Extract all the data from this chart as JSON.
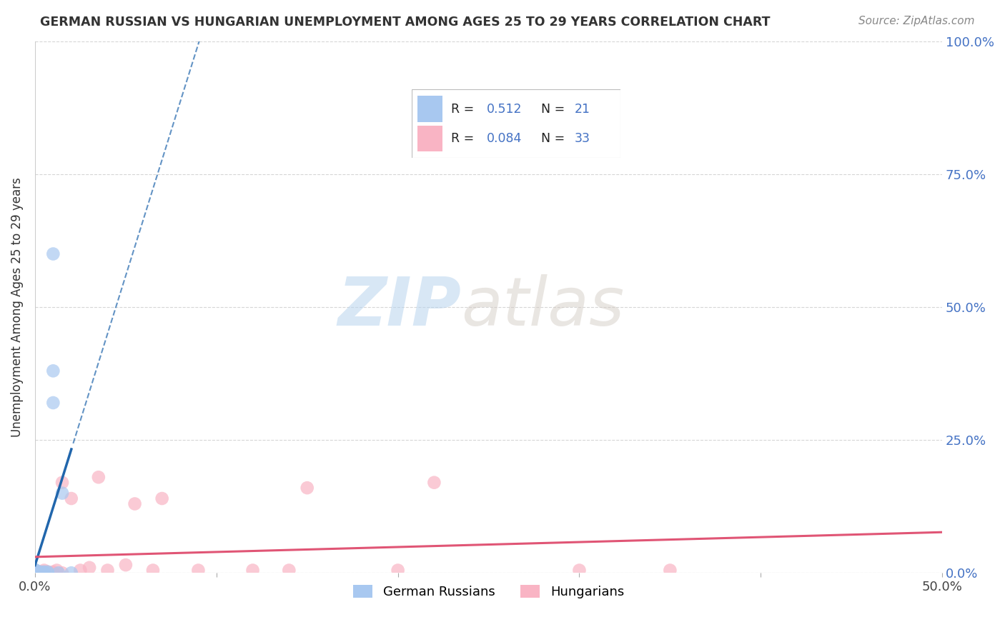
{
  "title": "GERMAN RUSSIAN VS HUNGARIAN UNEMPLOYMENT AMONG AGES 25 TO 29 YEARS CORRELATION CHART",
  "source": "Source: ZipAtlas.com",
  "ylabel": "Unemployment Among Ages 25 to 29 years",
  "xlim": [
    0,
    0.5
  ],
  "ylim": [
    0,
    1.0
  ],
  "xticks": [
    0.0,
    0.1,
    0.2,
    0.3,
    0.4,
    0.5
  ],
  "xtick_labels": [
    "0.0%",
    "",
    "",
    "",
    "",
    "50.0%"
  ],
  "yticks": [
    0.0,
    0.25,
    0.5,
    0.75,
    1.0
  ],
  "ytick_labels_right": [
    "0.0%",
    "25.0%",
    "50.0%",
    "75.0%",
    "100.0%"
  ],
  "watermark_zip": "ZIP",
  "watermark_atlas": "atlas",
  "gr_x": [
    0.0,
    0.0,
    0.0,
    0.0,
    0.0,
    0.0,
    0.0,
    0.0,
    0.0,
    0.003,
    0.003,
    0.005,
    0.005,
    0.007,
    0.007,
    0.01,
    0.01,
    0.01,
    0.013,
    0.015,
    0.02
  ],
  "gr_y": [
    0.0,
    0.0,
    0.0,
    0.002,
    0.003,
    0.003,
    0.004,
    0.005,
    0.006,
    0.0,
    0.002,
    0.0,
    0.002,
    0.0,
    0.002,
    0.32,
    0.38,
    0.6,
    0.0,
    0.15,
    0.0
  ],
  "hu_x": [
    0.0,
    0.0,
    0.0,
    0.0,
    0.003,
    0.003,
    0.005,
    0.005,
    0.005,
    0.007,
    0.007,
    0.01,
    0.01,
    0.012,
    0.015,
    0.015,
    0.02,
    0.025,
    0.03,
    0.035,
    0.04,
    0.05,
    0.055,
    0.065,
    0.07,
    0.09,
    0.12,
    0.14,
    0.15,
    0.2,
    0.22,
    0.3,
    0.35
  ],
  "hu_y": [
    0.0,
    0.0,
    0.002,
    0.005,
    0.0,
    0.002,
    0.0,
    0.002,
    0.005,
    0.0,
    0.002,
    0.0,
    0.002,
    0.005,
    0.0,
    0.17,
    0.14,
    0.005,
    0.01,
    0.18,
    0.005,
    0.015,
    0.13,
    0.005,
    0.14,
    0.005,
    0.005,
    0.005,
    0.16,
    0.005,
    0.17,
    0.005,
    0.005
  ],
  "gr_scatter_color": "#a8c8f0",
  "hu_scatter_color": "#f9b4c4",
  "gr_line_color": "#2166ac",
  "hu_line_color": "#e05575",
  "background_color": "#ffffff",
  "grid_color": "#cccccc",
  "title_color": "#333333",
  "source_color": "#888888",
  "axis_label_color": "#333333",
  "tick_color_right": "#4472c4",
  "legend_r_color": "#4472c4"
}
